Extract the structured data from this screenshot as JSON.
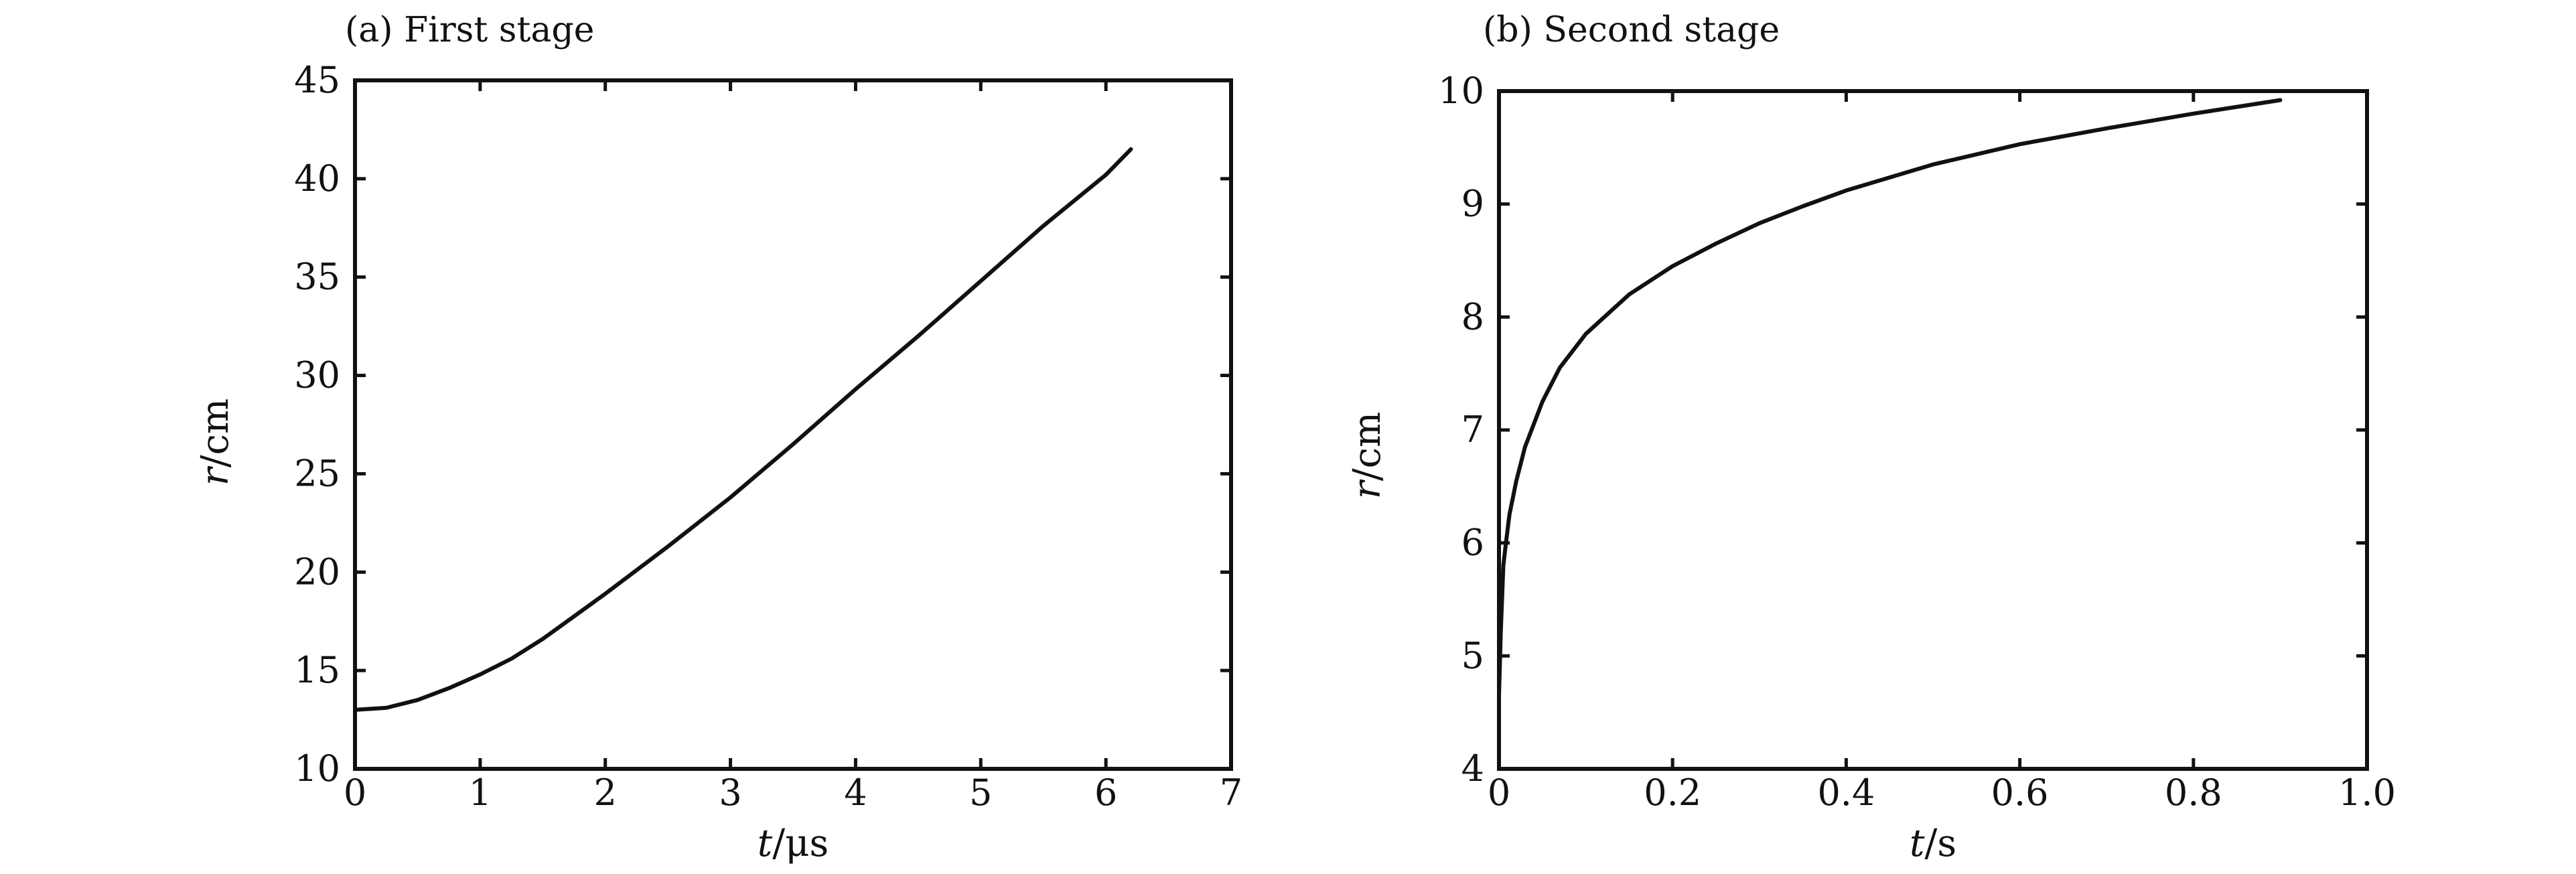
{
  "chart_data": [
    {
      "type": "line",
      "title": "(a) First stage",
      "xlabel_var": "t",
      "xlabel_unit": "/μs",
      "ylabel_var": "r",
      "ylabel_unit": "/cm",
      "xlim": [
        0,
        7
      ],
      "ylim": [
        10,
        45
      ],
      "xticks": [
        0,
        1,
        2,
        3,
        4,
        5,
        6,
        7
      ],
      "xtick_labels": [
        "0",
        "1",
        "2",
        "3",
        "4",
        "5",
        "6",
        "7"
      ],
      "yticks": [
        10,
        15,
        20,
        25,
        30,
        35,
        40,
        45
      ],
      "ytick_labels": [
        "10",
        "15",
        "20",
        "25",
        "30",
        "35",
        "40",
        "45"
      ],
      "series": [
        {
          "x": [
            0,
            0.25,
            0.5,
            0.75,
            1.0,
            1.25,
            1.5,
            2.0,
            2.5,
            3.0,
            3.5,
            4.0,
            4.5,
            5.0,
            5.5,
            6.0,
            6.2
          ],
          "y": [
            13.0,
            13.1,
            13.5,
            14.1,
            14.8,
            15.6,
            16.6,
            18.9,
            21.3,
            23.8,
            26.5,
            29.3,
            32.0,
            34.8,
            37.6,
            40.2,
            41.5
          ]
        }
      ]
    },
    {
      "type": "line",
      "title": "(b) Second stage",
      "xlabel_var": "t",
      "xlabel_unit": "/s",
      "ylabel_var": "r",
      "ylabel_unit": "/cm",
      "xlim": [
        0,
        1.0
      ],
      "ylim": [
        4,
        10
      ],
      "xticks": [
        0,
        0.2,
        0.4,
        0.6,
        0.8,
        1.0
      ],
      "xtick_labels": [
        "0",
        "0.2",
        "0.4",
        "0.6",
        "0.8",
        "1.0"
      ],
      "yticks": [
        4,
        5,
        6,
        7,
        8,
        9,
        10
      ],
      "ytick_labels": [
        "4",
        "5",
        "6",
        "7",
        "8",
        "9",
        "10"
      ],
      "series": [
        {
          "x": [
            0,
            0.002,
            0.005,
            0.008,
            0.012,
            0.02,
            0.03,
            0.05,
            0.07,
            0.1,
            0.15,
            0.2,
            0.25,
            0.3,
            0.35,
            0.4,
            0.5,
            0.6,
            0.7,
            0.8,
            0.9
          ],
          "y": [
            4.65,
            5.2,
            5.8,
            6.0,
            6.25,
            6.55,
            6.85,
            7.25,
            7.55,
            7.85,
            8.2,
            8.45,
            8.65,
            8.83,
            8.98,
            9.12,
            9.35,
            9.53,
            9.67,
            9.8,
            9.92
          ]
        }
      ]
    }
  ]
}
